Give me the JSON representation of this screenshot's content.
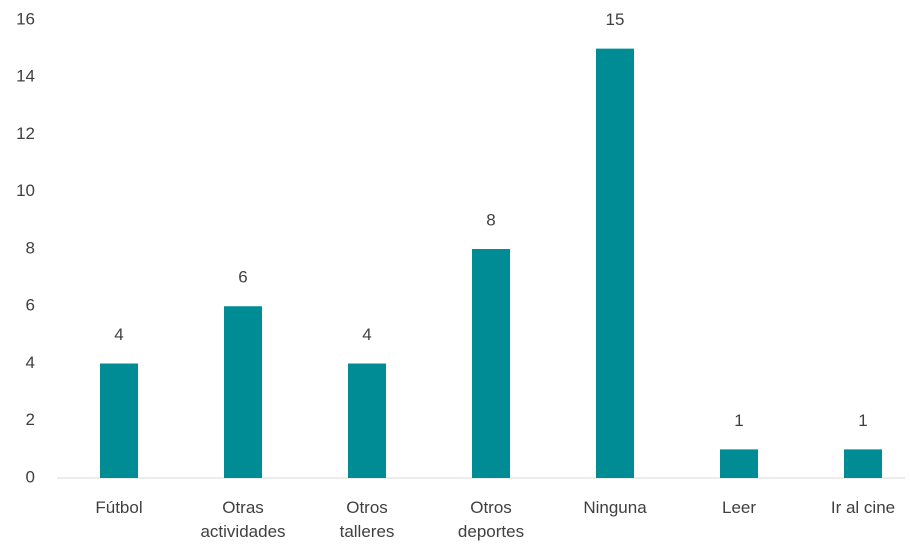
{
  "chart_data": {
    "type": "bar",
    "categories": [
      "Fútbol",
      "Otras actividades",
      "Otros talleres",
      "Otros deportes",
      "Ninguna",
      "Leer",
      "Ir al cine"
    ],
    "values": [
      4,
      6,
      4,
      8,
      15,
      1,
      1
    ],
    "color": "#008c95",
    "ylim": [
      0,
      16
    ],
    "yticks": [
      0,
      2,
      4,
      6,
      8,
      10,
      12,
      14,
      16
    ],
    "grid": false
  }
}
